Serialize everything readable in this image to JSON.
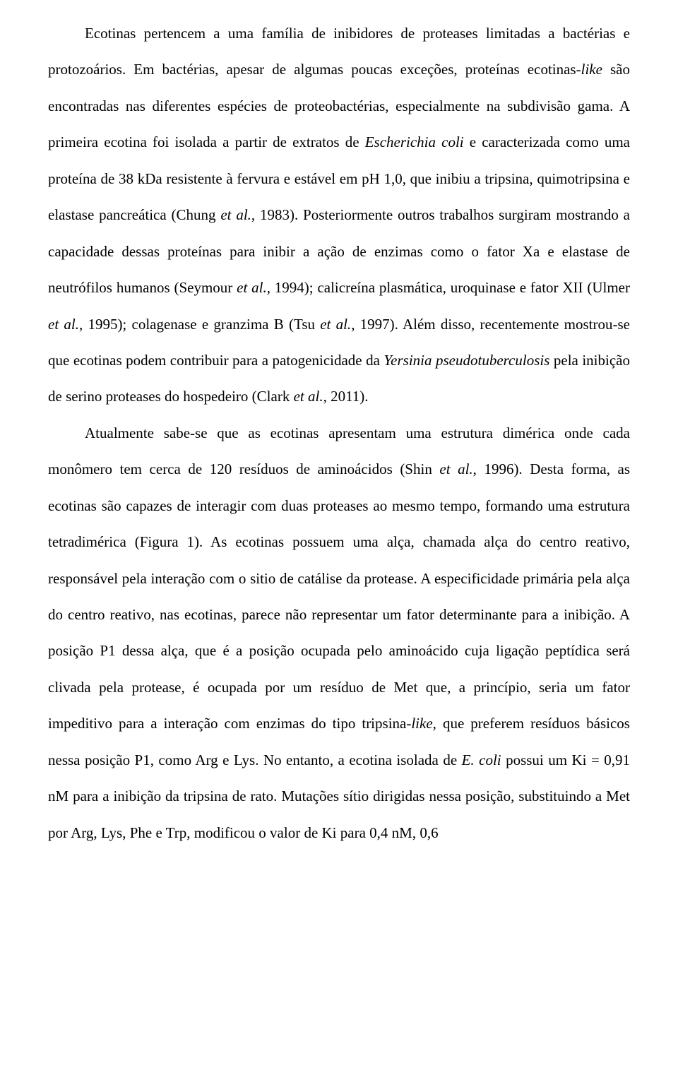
{
  "paragraphs": {
    "p1_a": "Ecotinas pertencem a uma família de inibidores de proteases limitadas a bactérias e protozoários. Em bactérias, apesar de algumas poucas exceções, proteínas ecotinas-",
    "p1_i1": "like",
    "p1_b": " são encontradas nas diferentes espécies de proteobactérias, especialmente na subdivisão gama. A primeira ecotina foi isolada a partir de extratos de ",
    "p1_i2": "Escherichia coli",
    "p1_c": " e caracterizada como uma proteína de 38 kDa resistente à fervura e estável em pH 1,0, que inibiu a tripsina, quimotripsina e elastase pancreática (Chung ",
    "p1_i3": "et al.",
    "p1_d": ", 1983). Posteriormente outros trabalhos surgiram mostrando a capacidade dessas proteínas para inibir a ação de enzimas como o fator Xa e elastase de neutrófilos humanos (Seymour ",
    "p1_i4": "et al.",
    "p1_e": ", 1994); calicreína plasmática, uroquinase e fator XII (Ulmer ",
    "p1_i5": "et al.",
    "p1_f": ", 1995); colagenase e granzima B (Tsu ",
    "p1_i6": "et al.",
    "p1_g": ", 1997). Além disso, recentemente mostrou-se que ecotinas podem contribuir para a patogenicidade da ",
    "p1_i7": "Yersinia pseudotuberculosis",
    "p1_h": " pela inibição de serino proteases do hospedeiro (Clark ",
    "p1_i8": "et al.",
    "p1_j": ", 2011).",
    "p2_a": "Atualmente sabe-se que as ecotinas apresentam uma estrutura dimérica onde cada monômero tem cerca de 120 resíduos de aminoácidos (Shin ",
    "p2_i1": "et al.",
    "p2_b": ", 1996). Desta forma, as ecotinas são capazes de interagir com duas proteases ao mesmo tempo, formando uma estrutura tetradimérica (Figura 1). As ecotinas possuem uma alça, chamada alça do centro reativo, responsável pela interação com o sitio de catálise da protease. A especificidade primária pela alça do centro reativo, nas ecotinas, parece não representar um fator determinante para a inibição. A posição P1 dessa alça, que é a posição ocupada pelo aminoácido cuja ligação peptídica será clivada pela protease, é ocupada por um resíduo de Met que, a princípio, seria um fator impeditivo para a interação com enzimas do tipo tripsina-",
    "p2_i2": "like",
    "p2_c": ", que preferem resíduos básicos nessa posição P1, como Arg e Lys. No entanto, a ecotina isolada de ",
    "p2_i3": "E. coli",
    "p2_d": " possui um Ki = 0,91 nM para a inibição da tripsina de rato. Mutações sítio dirigidas nessa posição, substituindo a Met por Arg, Lys, Phe e Trp, modificou o valor de Ki para 0,4 nM, 0,6"
  }
}
